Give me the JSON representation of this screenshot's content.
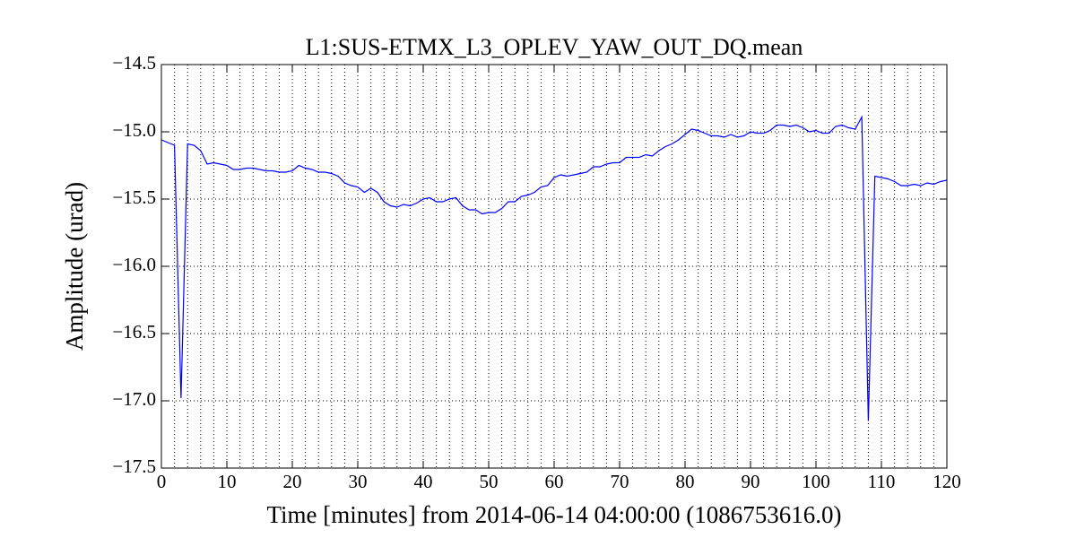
{
  "chart_data": {
    "type": "line",
    "title": "L1:SUS-ETMX_L3_OPLEV_YAW_OUT_DQ.mean",
    "x_label": "Time [minutes] from 2014-06-14 04:00:00 (1086753616.0)",
    "y_label": "Amplitude (urad)",
    "color": "#0000ff",
    "grid": true,
    "x_minor_step": 2,
    "xlim": [
      0,
      120
    ],
    "xticks": [
      0,
      10,
      20,
      30,
      40,
      50,
      60,
      70,
      80,
      90,
      100,
      110,
      120
    ],
    "ylim": [
      -17.5,
      -14.5
    ],
    "yticks": [
      {
        "value": -17.5,
        "label": "−17.5"
      },
      {
        "value": -17.0,
        "label": "−17.0"
      },
      {
        "value": -16.5,
        "label": "−16.5"
      },
      {
        "value": -16.0,
        "label": "−16.0"
      },
      {
        "value": -15.5,
        "label": "−15.5"
      },
      {
        "value": -15.0,
        "label": "−15.0"
      },
      {
        "value": -14.5,
        "label": "−14.5"
      }
    ],
    "x": [
      0,
      1,
      2,
      3,
      4,
      5,
      6,
      7,
      8,
      9,
      10,
      11,
      12,
      13,
      14,
      15,
      16,
      17,
      18,
      19,
      20,
      21,
      22,
      23,
      24,
      25,
      26,
      27,
      28,
      29,
      30,
      31,
      32,
      33,
      34,
      35,
      36,
      37,
      38,
      39,
      40,
      41,
      42,
      43,
      44,
      45,
      46,
      47,
      48,
      49,
      50,
      51,
      52,
      53,
      54,
      55,
      56,
      57,
      58,
      59,
      60,
      61,
      62,
      63,
      64,
      65,
      66,
      67,
      68,
      69,
      70,
      71,
      72,
      73,
      74,
      75,
      76,
      77,
      78,
      79,
      80,
      81,
      82,
      83,
      84,
      85,
      86,
      87,
      88,
      89,
      90,
      91,
      92,
      93,
      94,
      95,
      96,
      97,
      98,
      99,
      100,
      101,
      102,
      103,
      104,
      105,
      106,
      107,
      108,
      109,
      110,
      111,
      112,
      113,
      114,
      115,
      116,
      117,
      118,
      119,
      120
    ],
    "values": [
      -15.06,
      -15.08,
      -15.1,
      -16.98,
      -15.09,
      -15.1,
      -15.14,
      -15.24,
      -15.23,
      -15.24,
      -15.25,
      -15.28,
      -15.28,
      -15.27,
      -15.27,
      -15.28,
      -15.29,
      -15.29,
      -15.3,
      -15.3,
      -15.29,
      -15.25,
      -15.27,
      -15.28,
      -15.3,
      -15.3,
      -15.31,
      -15.33,
      -15.38,
      -15.4,
      -15.41,
      -15.45,
      -15.42,
      -15.45,
      -15.52,
      -15.55,
      -15.56,
      -15.54,
      -15.55,
      -15.53,
      -15.5,
      -15.49,
      -15.52,
      -15.52,
      -15.5,
      -15.49,
      -15.55,
      -15.58,
      -15.58,
      -15.61,
      -15.6,
      -15.6,
      -15.57,
      -15.52,
      -15.52,
      -15.48,
      -15.47,
      -15.45,
      -15.41,
      -15.4,
      -15.34,
      -15.32,
      -15.33,
      -15.32,
      -15.31,
      -15.3,
      -15.26,
      -15.26,
      -15.24,
      -15.23,
      -15.23,
      -15.19,
      -15.19,
      -15.19,
      -15.17,
      -15.18,
      -15.14,
      -15.11,
      -15.09,
      -15.06,
      -15.02,
      -14.98,
      -14.99,
      -15.01,
      -15.03,
      -15.03,
      -15.04,
      -15.02,
      -15.04,
      -15.03,
      -15.0,
      -15.01,
      -15.01,
      -14.99,
      -14.95,
      -14.95,
      -14.96,
      -14.95,
      -14.97,
      -15.0,
      -14.99,
      -15.01,
      -15.01,
      -14.96,
      -14.95,
      -14.97,
      -14.98,
      -14.89,
      -17.15,
      -15.33,
      -15.34,
      -15.35,
      -15.37,
      -15.4,
      -15.4,
      -15.39,
      -15.4,
      -15.38,
      -15.39,
      -15.37,
      -15.36
    ]
  }
}
